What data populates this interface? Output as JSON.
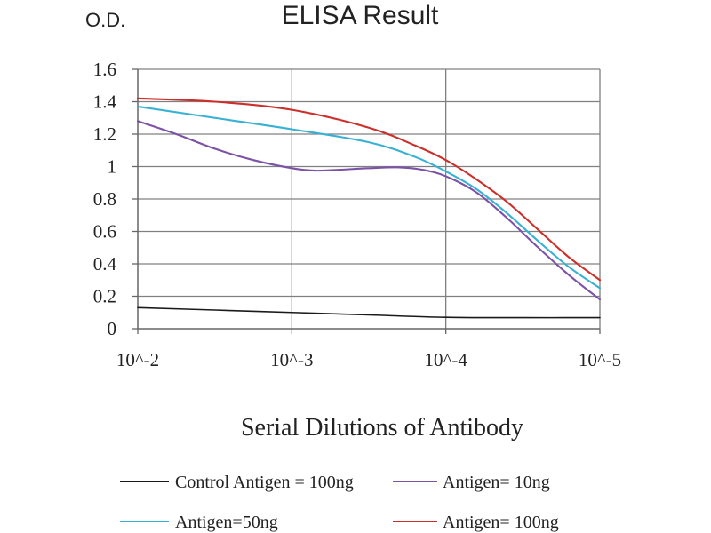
{
  "chart_data": {
    "type": "line",
    "title": "ELISA Result",
    "ylabel": "O.D.",
    "xlabel": "Serial Dilutions of Antibody",
    "x_ticks": [
      "10^-2",
      "10^-3",
      "10^-4",
      "10^-5"
    ],
    "y_ticks": [
      "0",
      "0.2",
      "0.4",
      "0.6",
      "0.8",
      "1",
      "1.2",
      "1.4",
      "1.6"
    ],
    "xlim": [
      -2,
      -5
    ],
    "ylim": [
      0,
      1.6
    ],
    "x_scale": "log (dilution 10^-2 to 10^-5)",
    "grid": true,
    "legend_position": "bottom",
    "series": [
      {
        "name": "Control Antigen = 100ng",
        "color": "#1a1a1a",
        "points": [
          {
            "x": -2,
            "y": 0.13
          },
          {
            "x": -2.5,
            "y": 0.115
          },
          {
            "x": -3,
            "y": 0.1
          },
          {
            "x": -3.5,
            "y": 0.085
          },
          {
            "x": -4,
            "y": 0.07
          },
          {
            "x": -4.5,
            "y": 0.068
          },
          {
            "x": -5,
            "y": 0.068
          }
        ]
      },
      {
        "name": "Antigen= 10ng",
        "color": "#7b52a6",
        "points": [
          {
            "x": -2,
            "y": 1.28
          },
          {
            "x": -2.25,
            "y": 1.2
          },
          {
            "x": -2.5,
            "y": 1.11
          },
          {
            "x": -2.75,
            "y": 1.04
          },
          {
            "x": -3,
            "y": 0.99
          },
          {
            "x": -3.15,
            "y": 0.975
          },
          {
            "x": -3.3,
            "y": 0.98
          },
          {
            "x": -3.5,
            "y": 0.99
          },
          {
            "x": -3.7,
            "y": 0.995
          },
          {
            "x": -3.85,
            "y": 0.98
          },
          {
            "x": -4,
            "y": 0.94
          },
          {
            "x": -4.2,
            "y": 0.84
          },
          {
            "x": -4.4,
            "y": 0.68
          },
          {
            "x": -4.6,
            "y": 0.5
          },
          {
            "x": -4.8,
            "y": 0.33
          },
          {
            "x": -5,
            "y": 0.18
          }
        ]
      },
      {
        "name": "Antigen=50ng",
        "color": "#37b1d3",
        "points": [
          {
            "x": -2,
            "y": 1.37
          },
          {
            "x": -2.5,
            "y": 1.3
          },
          {
            "x": -3,
            "y": 1.23
          },
          {
            "x": -3.5,
            "y": 1.15
          },
          {
            "x": -3.8,
            "y": 1.06
          },
          {
            "x": -4,
            "y": 0.97
          },
          {
            "x": -4.2,
            "y": 0.86
          },
          {
            "x": -4.4,
            "y": 0.71
          },
          {
            "x": -4.6,
            "y": 0.54
          },
          {
            "x": -4.8,
            "y": 0.38
          },
          {
            "x": -5,
            "y": 0.25
          }
        ]
      },
      {
        "name": "Antigen= 100ng",
        "color": "#cc2f2a",
        "points": [
          {
            "x": -2,
            "y": 1.42
          },
          {
            "x": -2.5,
            "y": 1.4
          },
          {
            "x": -3,
            "y": 1.35
          },
          {
            "x": -3.5,
            "y": 1.24
          },
          {
            "x": -3.8,
            "y": 1.13
          },
          {
            "x": -4,
            "y": 1.04
          },
          {
            "x": -4.2,
            "y": 0.92
          },
          {
            "x": -4.4,
            "y": 0.78
          },
          {
            "x": -4.6,
            "y": 0.61
          },
          {
            "x": -4.8,
            "y": 0.44
          },
          {
            "x": -5,
            "y": 0.3
          }
        ]
      }
    ]
  }
}
